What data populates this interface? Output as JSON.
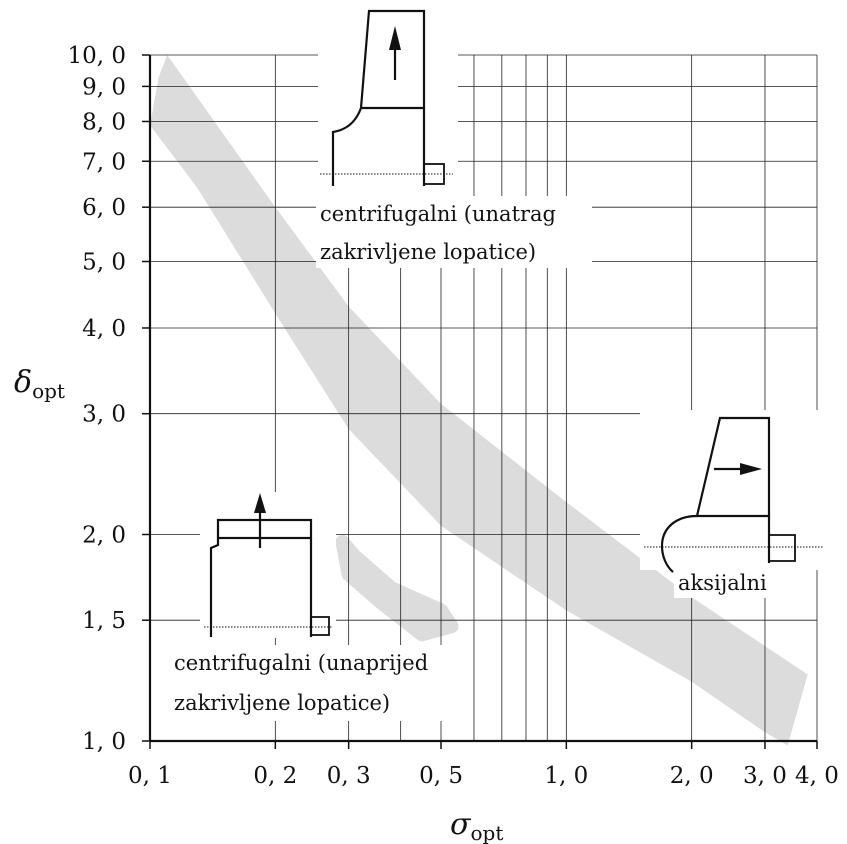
{
  "chart_data": {
    "type": "area",
    "xscale": "log",
    "yscale": "log",
    "xlim": [
      0.1,
      4.0
    ],
    "ylim": [
      1.0,
      10.0
    ],
    "grid": true,
    "x_ticks": [
      {
        "value": 0.1,
        "label": "0, 1"
      },
      {
        "value": 0.2,
        "label": "0, 2"
      },
      {
        "value": 0.3,
        "label": "0, 3"
      },
      {
        "value": 0.5,
        "label": "0, 5"
      },
      {
        "value": 1.0,
        "label": "1, 0"
      },
      {
        "value": 2.0,
        "label": "2, 0"
      },
      {
        "value": 3.0,
        "label": "3, 0"
      },
      {
        "value": 4.0,
        "label": "4, 0"
      }
    ],
    "y_ticks": [
      {
        "value": 1.0,
        "label": "1, 0"
      },
      {
        "value": 1.5,
        "label": "1, 5"
      },
      {
        "value": 2.0,
        "label": "2, 0"
      },
      {
        "value": 3.0,
        "label": "3, 0"
      },
      {
        "value": 4.0,
        "label": "4, 0"
      },
      {
        "value": 5.0,
        "label": "5, 0"
      },
      {
        "value": 6.0,
        "label": "6, 0"
      },
      {
        "value": 7.0,
        "label": "7, 0"
      },
      {
        "value": 8.0,
        "label": "8, 0"
      },
      {
        "value": 9.0,
        "label": "9, 0"
      },
      {
        "value": 10.0,
        "label": "10, 0"
      }
    ],
    "x_gridlines": [
      0.2,
      0.3,
      0.4,
      0.5,
      0.6,
      0.7,
      0.8,
      0.9,
      1.0,
      2.0,
      3.0,
      4.0
    ],
    "y_gridlines": [
      1.5,
      2.0,
      3.0,
      4.0,
      5.0,
      6.0,
      7.0,
      8.0,
      9.0,
      10.0
    ],
    "xlabel": {
      "main": "σ",
      "sub": "opt"
    },
    "ylabel": {
      "main": "δ",
      "sub": "opt"
    },
    "bands": [
      {
        "upper": [
          [
            0.1,
            7.9
          ],
          [
            0.105,
            9.3
          ],
          [
            0.11,
            10.0
          ],
          [
            0.2,
            6.0
          ],
          [
            0.3,
            4.3
          ],
          [
            0.5,
            3.1
          ],
          [
            1.0,
            2.23
          ],
          [
            2.0,
            1.62
          ],
          [
            3.8,
            1.25
          ]
        ],
        "lower": [
          [
            0.1,
            7.9
          ],
          [
            0.13,
            6.4
          ],
          [
            0.2,
            4.2
          ],
          [
            0.3,
            2.85
          ],
          [
            0.5,
            2.06
          ],
          [
            1.0,
            1.55
          ],
          [
            2.0,
            1.22
          ],
          [
            3.0,
            1.03
          ],
          [
            3.4,
            0.985
          ],
          [
            3.8,
            1.25
          ]
        ],
        "color": "#dcdcdc"
      },
      {
        "upper": [
          [
            0.29,
            1.95
          ],
          [
            0.31,
            1.86
          ],
          [
            0.38,
            1.67
          ],
          [
            0.5,
            1.55
          ],
          [
            0.53,
            1.47
          ]
        ],
        "lower": [
          [
            0.29,
            1.95
          ],
          [
            0.3,
            1.75
          ],
          [
            0.36,
            1.59
          ],
          [
            0.45,
            1.43
          ],
          [
            0.53,
            1.47
          ]
        ],
        "color": "#dcdcdc",
        "round_cap": true
      }
    ],
    "annotations": [
      {
        "lines": [
          "centrifugalni (unatrag",
          "zakrivljene lopatice)"
        ]
      },
      {
        "lines": [
          "centrifugalni (unaprijed",
          "zakrivljene lopatice)"
        ]
      },
      {
        "lines": [
          "aksijalni"
        ]
      }
    ]
  }
}
